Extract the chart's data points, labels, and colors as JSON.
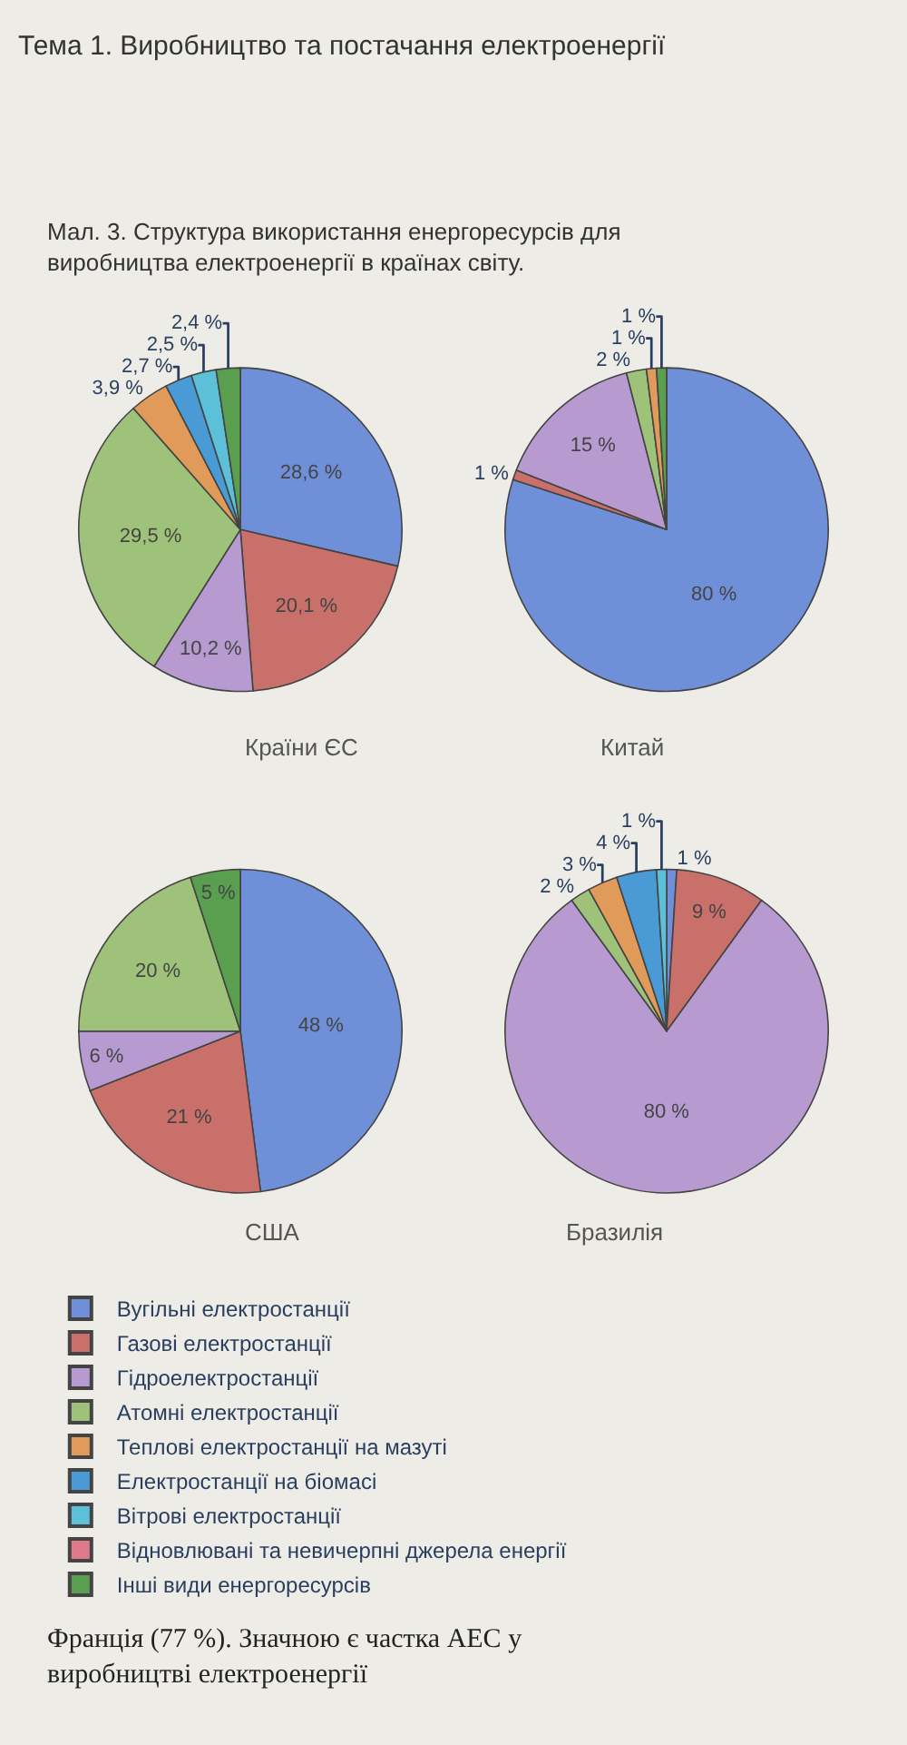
{
  "chart_data": {
    "type": "pie",
    "title": "Тема 1. Виробництво та постачання електроенергії",
    "subtitle": "Мал. 3. Структура використання енергоресурсів для виробництва електроенергії в країнах світу.",
    "annotations": [
      "Франція (77 %). Значною є частка АЕС у виробництві електроенергії"
    ],
    "categories": [
      "Вугільні електростанції",
      "Газові електростанції",
      "Гідроелектростанції",
      "Атомні електростанції",
      "Теплові електростанції на мазуті",
      "Електростанції на біомасі",
      "Вітрові електростанції",
      "Відновлювані та невичерпні джерела енергії",
      "Інші види енергоресурсів"
    ],
    "colors": [
      "#6f8fd8",
      "#c9706a",
      "#b79ad0",
      "#9fc27a",
      "#e09a5a",
      "#4a9ad6",
      "#5bc0d8",
      "#e07a8a",
      "#5a9e50"
    ],
    "legend": "bottom",
    "series": [
      {
        "name": "Країни ЄС",
        "values": [
          28.6,
          20.1,
          10.2,
          29.5,
          3.9,
          2.7,
          2.5,
          null,
          2.4
        ],
        "value_labels": [
          "28,6 %",
          "20,1 %",
          "10,2 %",
          "29,5 %",
          "3,9 %",
          "2,7 %",
          "2,5 %",
          null,
          "2,4 %"
        ]
      },
      {
        "name": "Китай",
        "values": [
          80,
          1,
          15,
          2,
          1,
          null,
          null,
          null,
          1
        ],
        "value_labels": [
          "80 %",
          "1 %",
          "15 %",
          "2 %",
          "1 %",
          null,
          null,
          null,
          "1 %"
        ]
      },
      {
        "name": "США",
        "values": [
          48,
          21,
          6,
          20,
          null,
          null,
          null,
          null,
          5
        ],
        "value_labels": [
          "48 %",
          "21 %",
          "6 %",
          "20 %",
          null,
          null,
          null,
          null,
          "5 %"
        ]
      },
      {
        "name": "Бразилія",
        "values": [
          1,
          9,
          80,
          2,
          3,
          4,
          1,
          null,
          null
        ],
        "value_labels": [
          "1 %",
          "9 %",
          "80 %",
          "2 %",
          "3 %",
          "4 %",
          "1 %",
          null,
          null
        ]
      }
    ]
  }
}
